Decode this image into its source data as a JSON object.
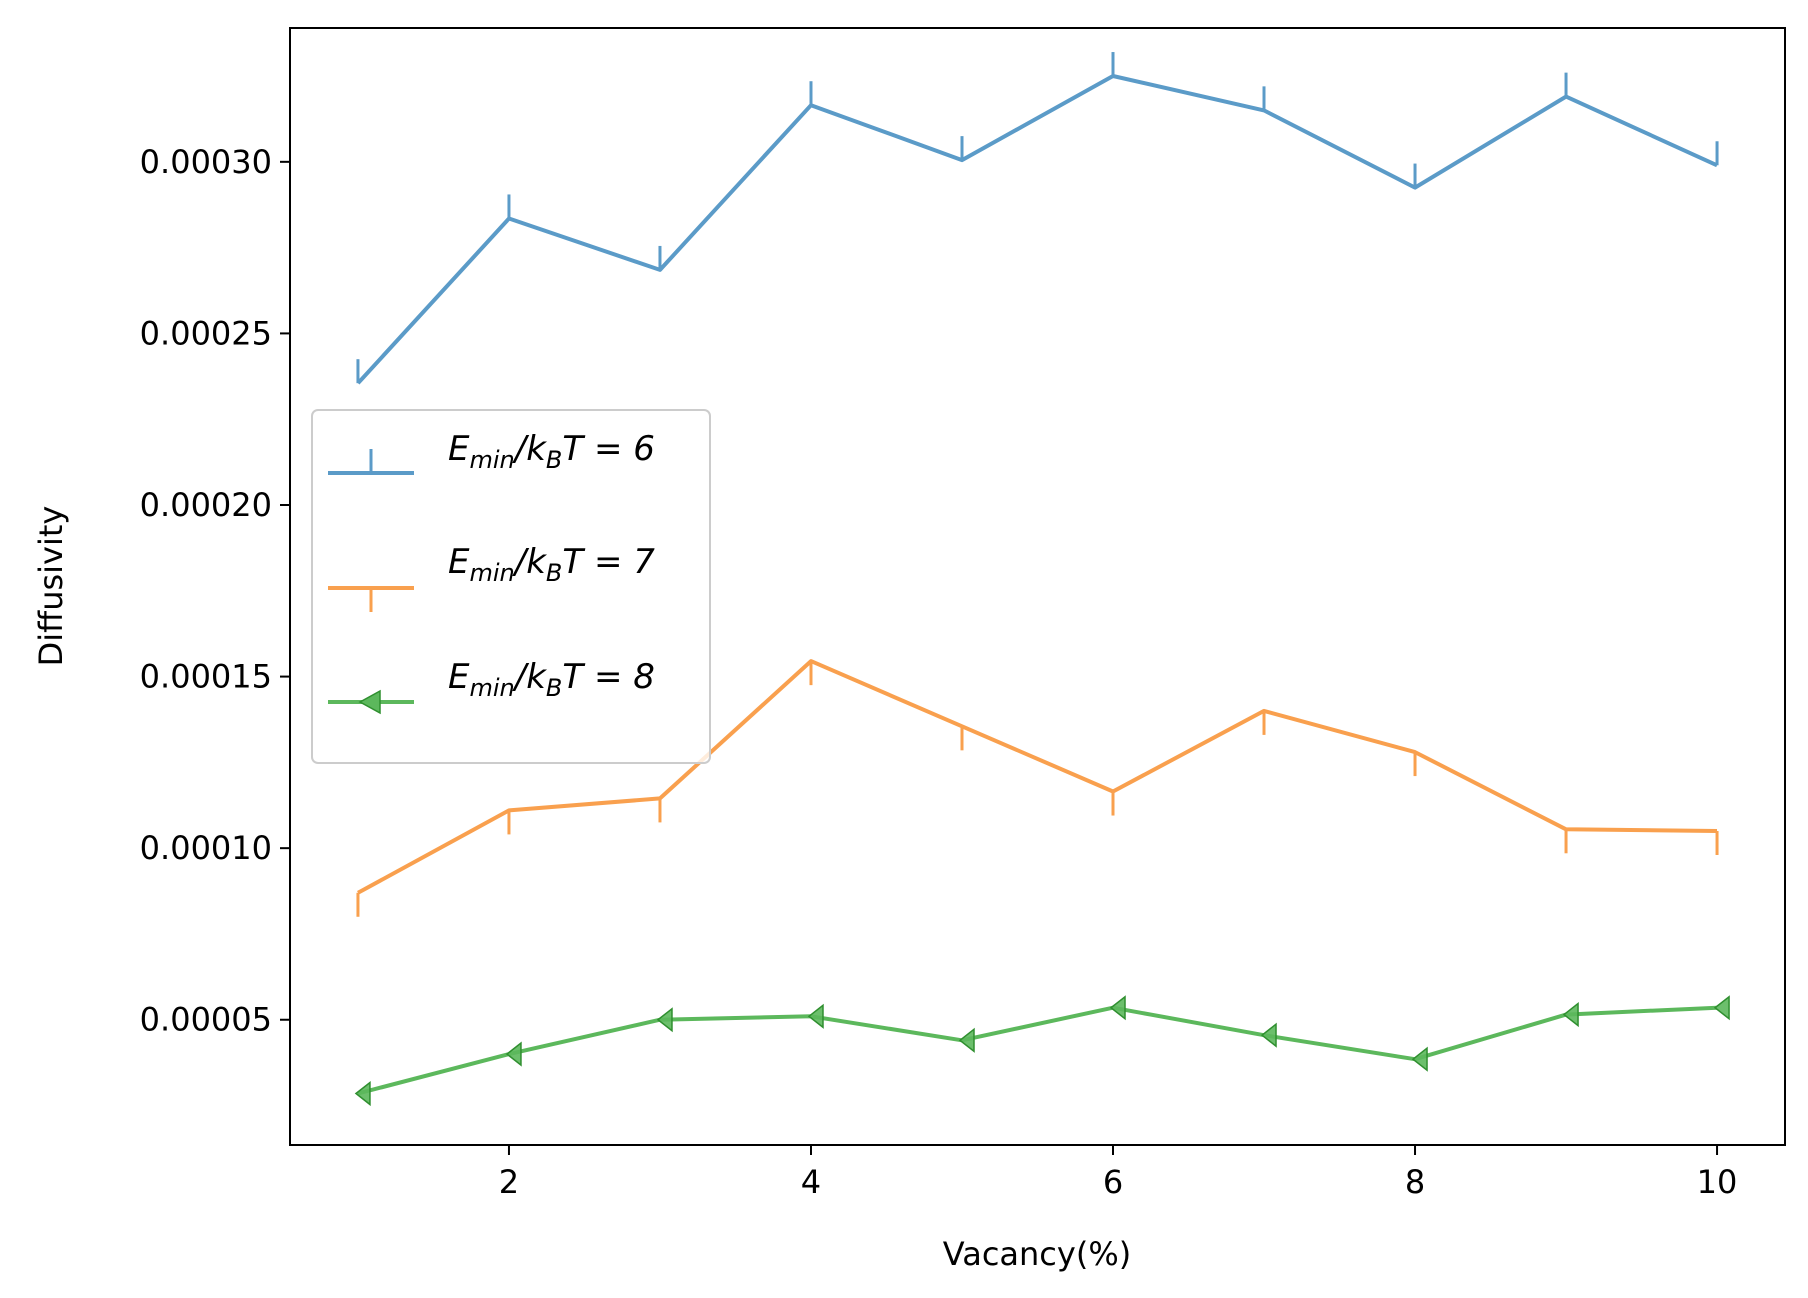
{
  "chart_data": {
    "type": "line",
    "title": "",
    "xlabel": "Vacancy(%)",
    "ylabel": "Diffusivity",
    "xlim": [
      0.55,
      10.45
    ],
    "ylim": [
      1.35e-05,
      0.000339
    ],
    "xticks": [
      "2",
      "4",
      "6",
      "8",
      "10"
    ],
    "yticks": [
      "0.00005",
      "0.00010",
      "0.00015",
      "0.00020",
      "0.00025",
      "0.00030"
    ],
    "legend_position": "center-left",
    "grid": false,
    "x": [
      1,
      2,
      3,
      4,
      5,
      6,
      7,
      8,
      9,
      10
    ],
    "series": [
      {
        "name": "E_min/k_BT = 6",
        "color": "#5b9bc8",
        "marker": "tick-up",
        "values": [
          0.0002355,
          0.0002835,
          0.0002685,
          0.0003165,
          0.0003005,
          0.000325,
          0.000315,
          0.0002925,
          0.000319,
          0.000299
        ]
      },
      {
        "name": "E_min/k_BT = 7",
        "color": "#f9a04e",
        "marker": "tick-down",
        "values": [
          8.7e-05,
          0.000111,
          0.0001145,
          0.0001545,
          0.0001355,
          0.0001165,
          0.00014,
          0.000128,
          0.0001055,
          0.000105
        ]
      },
      {
        "name": "E_min/k_BT = 8",
        "color": "#5cb85c",
        "marker": "triangle-left",
        "values": [
          2.85e-05,
          4e-05,
          5e-05,
          5.1e-05,
          4.4e-05,
          5.35e-05,
          4.55e-05,
          3.85e-05,
          5.15e-05,
          5.35e-05
        ]
      }
    ]
  },
  "legend": [
    {
      "base": "E",
      "sub1": "min",
      "mid": "/k",
      "sub2": "B",
      "tail": "T = 6"
    },
    {
      "base": "E",
      "sub1": "min",
      "mid": "/k",
      "sub2": "B",
      "tail": "T = 7"
    },
    {
      "base": "E",
      "sub1": "min",
      "mid": "/k",
      "sub2": "B",
      "tail": "T = 8"
    }
  ]
}
